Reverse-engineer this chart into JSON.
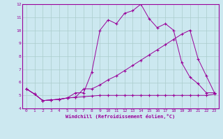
{
  "xlabel": "Windchill (Refroidissement éolien,°C)",
  "line_color": "#990099",
  "bg_color": "#cce8f0",
  "grid_color": "#aacccc",
  "xlim": [
    -0.5,
    23.5
  ],
  "ylim": [
    4,
    12
  ],
  "xticks": [
    0,
    1,
    2,
    3,
    4,
    5,
    6,
    7,
    8,
    9,
    10,
    11,
    12,
    13,
    14,
    15,
    16,
    17,
    18,
    19,
    20,
    21,
    22,
    23
  ],
  "yticks": [
    4,
    5,
    6,
    7,
    8,
    9,
    10,
    11,
    12
  ],
  "series1_x": [
    0,
    1,
    2,
    3,
    4,
    5,
    6,
    7,
    8,
    9,
    10,
    11,
    12,
    13,
    14,
    15,
    16,
    17,
    18,
    19,
    20,
    21,
    22,
    23
  ],
  "series1_y": [
    5.5,
    5.1,
    4.6,
    4.65,
    4.7,
    4.8,
    4.85,
    4.9,
    4.95,
    5.0,
    5.0,
    5.0,
    5.0,
    5.0,
    5.0,
    5.0,
    5.0,
    5.0,
    5.0,
    5.0,
    5.0,
    5.0,
    5.0,
    5.1
  ],
  "series2_x": [
    0,
    1,
    2,
    3,
    4,
    5,
    6,
    7,
    8,
    9,
    10,
    11,
    12,
    13,
    14,
    15,
    16,
    17,
    18,
    19,
    20,
    21,
    22,
    23
  ],
  "series2_y": [
    5.5,
    5.1,
    4.6,
    4.65,
    4.7,
    4.8,
    5.2,
    5.2,
    6.8,
    10.0,
    10.8,
    10.5,
    11.3,
    11.5,
    12.0,
    10.9,
    10.2,
    10.5,
    10.0,
    7.5,
    6.4,
    5.9,
    5.2,
    5.2
  ],
  "series3_x": [
    0,
    1,
    2,
    3,
    4,
    5,
    6,
    7,
    8,
    9,
    10,
    11,
    12,
    13,
    14,
    15,
    16,
    17,
    18,
    19,
    20,
    21,
    22,
    23
  ],
  "series3_y": [
    5.5,
    5.1,
    4.6,
    4.65,
    4.7,
    4.8,
    4.85,
    5.5,
    5.5,
    5.8,
    6.2,
    6.5,
    6.9,
    7.3,
    7.7,
    8.1,
    8.5,
    8.9,
    9.3,
    9.7,
    10.0,
    7.8,
    6.5,
    5.2
  ]
}
